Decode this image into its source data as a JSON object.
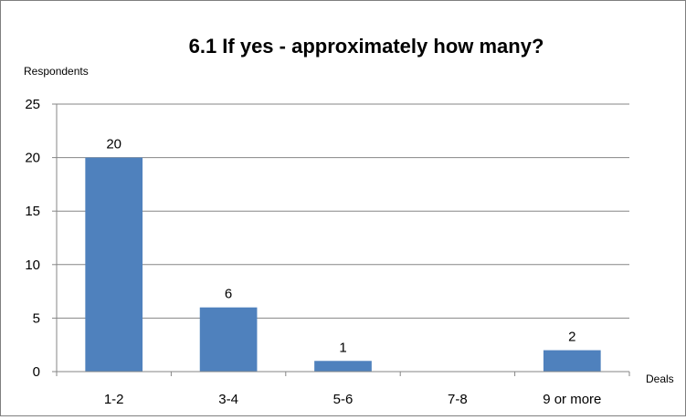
{
  "chart_data": {
    "type": "bar",
    "title": "6.1 If yes - approximately how many?",
    "ylabel": "Respondents",
    "xlabel": "Deals",
    "categories": [
      "1-2",
      "3-4",
      "5-6",
      "7-8",
      "9 or more"
    ],
    "values": [
      20,
      6,
      1,
      null,
      2
    ],
    "ylim": [
      0,
      25
    ],
    "yticks": [
      0,
      5,
      10,
      15,
      20,
      25
    ],
    "grid": true,
    "legend": "none",
    "bar_color": "#4f81bd",
    "data_labels": [
      "20",
      "6",
      "1",
      "",
      "2"
    ]
  }
}
